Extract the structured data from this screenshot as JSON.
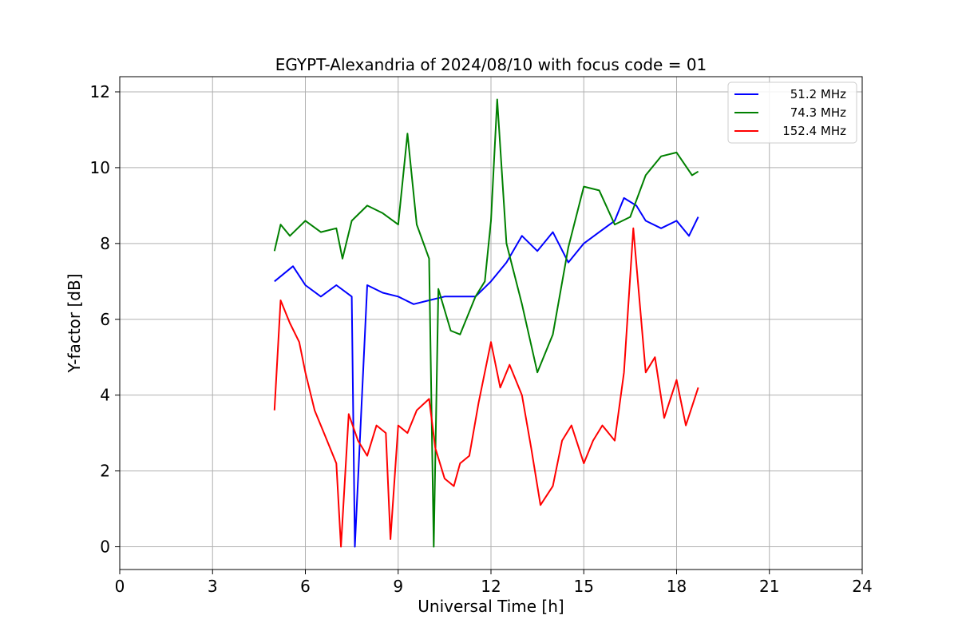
{
  "chart_data": {
    "type": "line",
    "title": "EGYPT-Alexandria of 2024/08/10 with focus code = 01",
    "xlabel": "Universal Time [h]",
    "ylabel": "Y-factor [dB]",
    "xlim": [
      0,
      24
    ],
    "ylim": [
      -0.6,
      12.4
    ],
    "xticks": [
      0,
      3,
      6,
      9,
      12,
      15,
      18,
      21,
      24
    ],
    "yticks": [
      0,
      2,
      4,
      6,
      8,
      10,
      12
    ],
    "grid": true,
    "legend_position": "top-right",
    "series": [
      {
        "name": "51.2 MHz",
        "color": "#0000ff",
        "x": [
          5.0,
          5.3,
          5.6,
          6.0,
          6.5,
          7.0,
          7.5,
          7.6,
          8.0,
          8.5,
          9.0,
          9.5,
          10.0,
          10.5,
          11.0,
          11.5,
          12.0,
          12.5,
          13.0,
          13.5,
          14.0,
          14.5,
          15.0,
          15.5,
          16.0,
          16.3,
          16.7,
          17.0,
          17.5,
          18.0,
          18.4,
          18.7
        ],
        "y": [
          7.0,
          7.2,
          7.4,
          6.9,
          6.6,
          6.9,
          6.6,
          0.0,
          6.9,
          6.7,
          6.6,
          6.4,
          6.5,
          6.6,
          6.6,
          6.6,
          7.0,
          7.5,
          8.2,
          7.8,
          8.3,
          7.5,
          8.0,
          8.3,
          8.6,
          9.2,
          9.0,
          8.6,
          8.4,
          8.6,
          8.2,
          8.7
        ]
      },
      {
        "name": "74.3 MHz",
        "color": "#008000",
        "x": [
          5.0,
          5.2,
          5.5,
          6.0,
          6.5,
          7.0,
          7.2,
          7.5,
          8.0,
          8.5,
          9.0,
          9.3,
          9.6,
          10.0,
          10.15,
          10.3,
          10.7,
          11.0,
          11.5,
          11.8,
          12.0,
          12.2,
          12.5,
          13.0,
          13.5,
          14.0,
          14.5,
          15.0,
          15.5,
          16.0,
          16.5,
          17.0,
          17.5,
          18.0,
          18.5,
          18.7
        ],
        "y": [
          7.8,
          8.5,
          8.2,
          8.6,
          8.3,
          8.4,
          7.6,
          8.6,
          9.0,
          8.8,
          8.5,
          10.9,
          8.5,
          7.6,
          0.0,
          6.8,
          5.7,
          5.6,
          6.6,
          7.0,
          8.6,
          11.8,
          8.0,
          6.4,
          4.6,
          5.6,
          7.9,
          9.5,
          9.4,
          8.5,
          8.7,
          9.8,
          10.3,
          10.4,
          9.8,
          9.9
        ]
      },
      {
        "name": "152.4 MHz",
        "color": "#ff0000",
        "x": [
          5.0,
          5.2,
          5.5,
          5.8,
          6.0,
          6.3,
          6.6,
          7.0,
          7.15,
          7.4,
          7.7,
          8.0,
          8.3,
          8.6,
          8.75,
          9.0,
          9.3,
          9.6,
          10.0,
          10.2,
          10.5,
          10.8,
          11.0,
          11.3,
          11.6,
          12.0,
          12.3,
          12.6,
          13.0,
          13.3,
          13.6,
          14.0,
          14.3,
          14.6,
          15.0,
          15.3,
          15.6,
          16.0,
          16.3,
          16.6,
          17.0,
          17.3,
          17.6,
          18.0,
          18.3,
          18.7
        ],
        "y": [
          3.6,
          6.5,
          5.9,
          5.4,
          4.6,
          3.6,
          3.0,
          2.2,
          0.0,
          3.5,
          2.8,
          2.4,
          3.2,
          3.0,
          0.2,
          3.2,
          3.0,
          3.6,
          3.9,
          2.6,
          1.8,
          1.6,
          2.2,
          2.4,
          3.8,
          5.4,
          4.2,
          4.8,
          4.0,
          2.6,
          1.1,
          1.6,
          2.8,
          3.2,
          2.2,
          2.8,
          3.2,
          2.8,
          4.6,
          8.4,
          4.6,
          5.0,
          3.4,
          4.4,
          3.2,
          4.2
        ]
      }
    ]
  }
}
